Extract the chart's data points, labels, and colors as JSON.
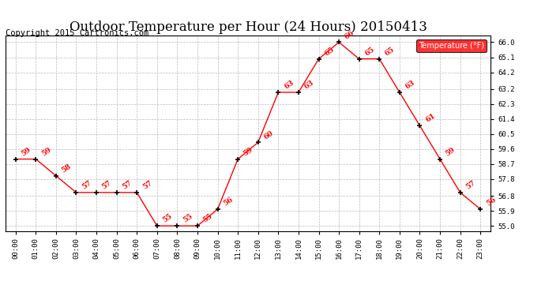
{
  "title": "Outdoor Temperature per Hour (24 Hours) 20150413",
  "copyright": "Copyright 2015 Cartronics.com",
  "legend_label": "Temperature (°F)",
  "hours": [
    0,
    1,
    2,
    3,
    4,
    5,
    6,
    7,
    8,
    9,
    10,
    11,
    12,
    13,
    14,
    15,
    16,
    17,
    18,
    19,
    20,
    21,
    22,
    23
  ],
  "temps": [
    59,
    59,
    58,
    57,
    57,
    57,
    57,
    55,
    55,
    55,
    56,
    59,
    60,
    63,
    63,
    65,
    66,
    65,
    65,
    63,
    61,
    59,
    57,
    56
  ],
  "xlabels": [
    "00:00",
    "01:00",
    "02:00",
    "03:00",
    "04:00",
    "05:00",
    "06:00",
    "07:00",
    "08:00",
    "09:00",
    "10:00",
    "11:00",
    "12:00",
    "13:00",
    "14:00",
    "15:00",
    "16:00",
    "17:00",
    "18:00",
    "19:00",
    "20:00",
    "21:00",
    "22:00",
    "23:00"
  ],
  "yticks": [
    55.0,
    55.9,
    56.8,
    57.8,
    58.7,
    59.6,
    60.5,
    61.4,
    62.3,
    63.2,
    64.2,
    65.1,
    66.0
  ],
  "ylim": [
    54.7,
    66.4
  ],
  "xlim": [
    -0.5,
    23.5
  ],
  "line_color": "red",
  "marker_color": "black",
  "label_color": "red",
  "grid_color": "#bbbbbb",
  "bg_color": "white",
  "title_fontsize": 12,
  "copyright_fontsize": 7.5,
  "legend_bg": "red",
  "legend_fg": "white"
}
